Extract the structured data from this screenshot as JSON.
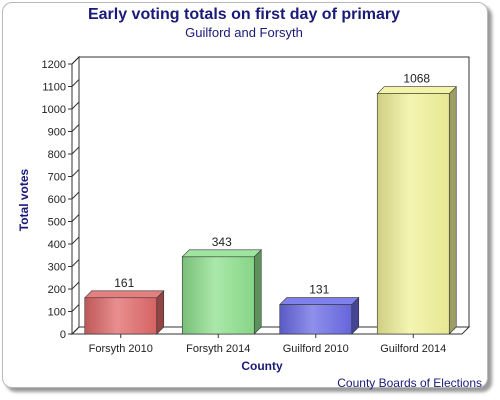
{
  "chart_data": {
    "type": "bar",
    "title": "Early voting totals on first day of primary",
    "subtitle": "Guilford and Forsyth",
    "xlabel": "County",
    "ylabel": "Total votes",
    "categories": [
      "Forsyth 2010",
      "Forsyth 2014",
      "Guilford 2010",
      "Guilford 2014"
    ],
    "values": [
      161,
      343,
      131,
      1068
    ],
    "ylim": [
      0,
      1200
    ],
    "yticks": [
      0,
      100,
      200,
      300,
      400,
      500,
      600,
      700,
      800,
      900,
      1000,
      1100,
      1200
    ],
    "colors": [
      "#e06868",
      "#8ee08e",
      "#6a6ae6",
      "#f2f29a"
    ],
    "grid": false,
    "legend": "none",
    "source": "County Boards of Elections"
  }
}
